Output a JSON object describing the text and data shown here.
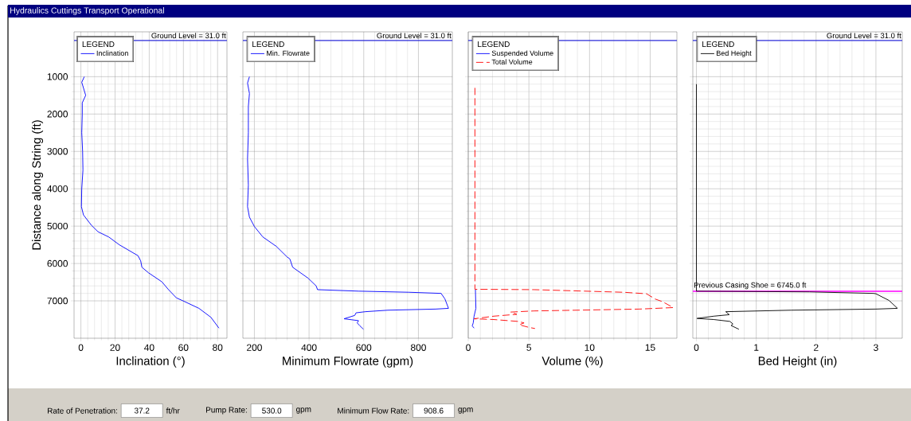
{
  "chart_data": [
    {
      "type": "line",
      "title": "Hydraulics Cuttings Transport Operational",
      "xlabel": "Inclination (°)",
      "ylabel": "Distance along String (ft)",
      "legend_title": "LEGEND",
      "legend": "top left",
      "grid": true,
      "xlim": [
        -4,
        85.5
      ],
      "xticks": [
        0,
        20,
        40,
        60,
        80
      ],
      "ylim": [
        8000,
        -200
      ],
      "yticks": [
        1000,
        2000,
        3000,
        4000,
        5000,
        6000,
        7000
      ],
      "ref_lines": [
        {
          "axis": "y",
          "value": 31,
          "label": "Ground Level = 31.0 ft",
          "color": "#2b2bd9"
        }
      ],
      "annotations": [
        "Rate of Penetration:",
        "37.2",
        "ft/hr",
        "Pump Rate:",
        "530.0",
        "gpm",
        "Minimum Flow Rate:",
        "908.6",
        "gpm"
      ],
      "series": [
        {
          "name": "Inclination",
          "color": "#0000ff",
          "line_style": "solid",
          "x": [
            2,
            0.5,
            2.8,
            0.8,
            0.8,
            0.5,
            1,
            1.2,
            0.5,
            0.3,
            1.5,
            6.2,
            10,
            16.3,
            22.5,
            33.4,
            35,
            35.7,
            39.6,
            47.4,
            51.3,
            55.9,
            59.8,
            69.1,
            76.1,
            80.8
          ],
          "values": [
            1000,
            1150,
            1500,
            1700,
            2000,
            2500,
            3000,
            3500,
            4000,
            4480,
            4700,
            4980,
            5150,
            5290,
            5500,
            5790,
            5930,
            6100,
            6250,
            6490,
            6700,
            6920,
            7000,
            7200,
            7440,
            7730
          ]
        }
      ]
    },
    {
      "type": "line",
      "xlabel": "Minimum Flowrate (gpm)",
      "legend_title": "LEGEND",
      "legend": "top left",
      "grid": true,
      "tick_labels": "x",
      "xlim": [
        158,
        924
      ],
      "xticks": [
        200,
        400,
        600,
        800
      ],
      "ylim": [
        8000,
        -200
      ],
      "yticks": [
        1000,
        2000,
        3000,
        4000,
        5000,
        6000,
        7000
      ],
      "ref_lines": [
        {
          "axis": "y",
          "value": 31,
          "label": "Ground Level = 31.0 ft",
          "color": "#2b2bd9"
        }
      ],
      "series": [
        {
          "name": "Min. Flowrate",
          "color": "#0000ff",
          "line_style": "solid",
          "x": [
            182,
            175,
            182,
            178,
            178,
            175,
            178,
            175,
            182,
            200,
            231,
            280,
            319,
            330,
            340,
            396,
            426,
            431,
            581,
            766,
            883,
            897,
            910,
            863,
            688,
            606,
            572,
            567,
            528,
            581,
            576,
            586,
            599
          ],
          "values": [
            1000,
            1170,
            1450,
            1800,
            2500,
            3200,
            3900,
            4480,
            4760,
            5010,
            5290,
            5540,
            5820,
            5880,
            6100,
            6390,
            6600,
            6700,
            6740,
            6770,
            6800,
            6950,
            7200,
            7220,
            7250,
            7290,
            7320,
            7390,
            7480,
            7530,
            7590,
            7670,
            7760
          ]
        }
      ]
    },
    {
      "type": "line",
      "xlabel": "Volume (%)",
      "legend_title": "LEGEND",
      "legend": "top left",
      "grid": true,
      "tick_labels": "x",
      "xlim": [
        0,
        17.2
      ],
      "xticks": [
        0,
        5,
        10,
        15
      ],
      "ylim": [
        8000,
        -200
      ],
      "yticks": [
        1000,
        2000,
        3000,
        4000,
        5000,
        6000,
        7000
      ],
      "ref_lines": [
        {
          "axis": "y",
          "value": 31,
          "color": "#2b2bd9"
        }
      ],
      "series": [
        {
          "name": "Suspended Volume",
          "color": "#0000ff",
          "line_style": "solid",
          "x": [
            0.59,
            0.63,
            0.48,
            0.41,
            0.33,
            0.48
          ],
          "values": [
            6700,
            7200,
            7410,
            7590,
            7670,
            7730
          ]
        },
        {
          "name": "Total Volume",
          "color": "#ff0000",
          "line_style": "dashed",
          "x": [
            0.55,
            0.55,
            5.4,
            12.8,
            14.7,
            15.4,
            16.0,
            16.9,
            14.1,
            5.4,
            3.5,
            4.0,
            2.1,
            0.48,
            2.1,
            4.1,
            4.6,
            4.2,
            5.0,
            5.5
          ],
          "values": [
            1300,
            6690,
            6700,
            6770,
            6810,
            6950,
            7020,
            7180,
            7220,
            7270,
            7300,
            7360,
            7410,
            7480,
            7500,
            7550,
            7590,
            7640,
            7710,
            7740
          ]
        }
      ]
    },
    {
      "type": "line",
      "xlabel": "Bed Height (in)",
      "legend_title": "LEGEND",
      "legend": "top left",
      "grid": true,
      "tick_labels": "x",
      "xlim": [
        -0.06,
        3.44
      ],
      "xticks": [
        0,
        1,
        2,
        3
      ],
      "ylim": [
        8000,
        -200
      ],
      "yticks": [
        1000,
        2000,
        3000,
        4000,
        5000,
        6000,
        7000
      ],
      "ref_lines": [
        {
          "axis": "y",
          "value": 31,
          "label": "Ground Level = 31.0 ft",
          "color": "#2b2bd9"
        },
        {
          "axis": "y",
          "value": 6745,
          "label": "Previous Casing Shoe = 6745.0 ft",
          "color": "#ff00ff"
        }
      ],
      "series": [
        {
          "name": "Bed Height",
          "color": "#000000",
          "line_style": "solid",
          "x": [
            0,
            0,
            1.89,
            2.96,
            3.0,
            3.22,
            3.36,
            3.0,
            1.58,
            0.49,
            0.55,
            0.29,
            0.01,
            0.29,
            0.56,
            0.61,
            0.58,
            0.71
          ],
          "values": [
            1200,
            6740,
            6760,
            6800,
            6810,
            6990,
            7200,
            7220,
            7250,
            7290,
            7370,
            7410,
            7470,
            7500,
            7550,
            7620,
            7660,
            7760
          ]
        }
      ]
    }
  ]
}
